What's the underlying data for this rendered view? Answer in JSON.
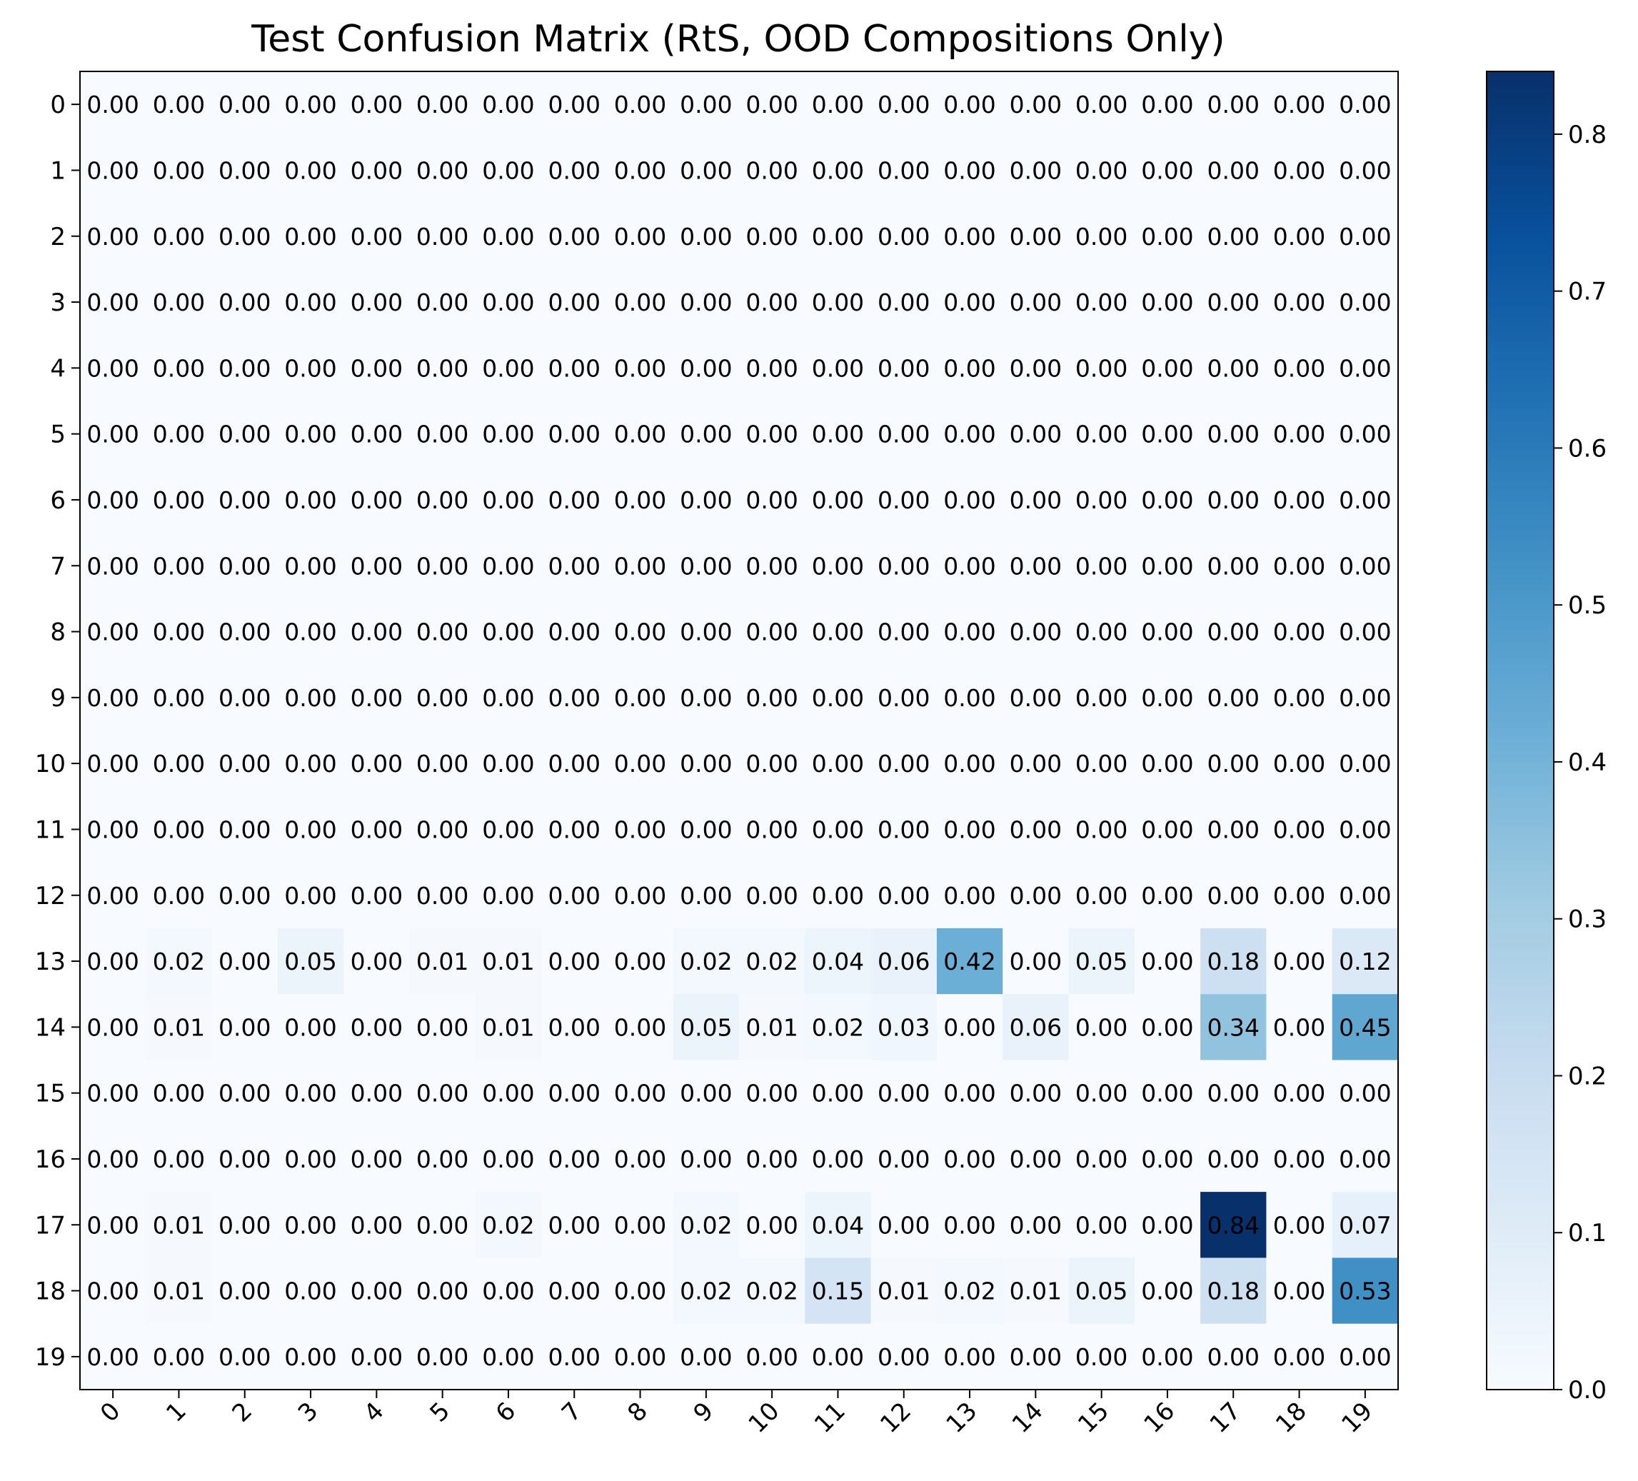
{
  "chart_data": {
    "type": "heatmap",
    "title": "Test Confusion Matrix (RtS, OOD Compositions Only)",
    "xlabel": "",
    "ylabel": "",
    "x_categories": [
      "0",
      "1",
      "2",
      "3",
      "4",
      "5",
      "6",
      "7",
      "8",
      "9",
      "10",
      "11",
      "12",
      "13",
      "14",
      "15",
      "16",
      "17",
      "18",
      "19"
    ],
    "y_categories": [
      "0",
      "1",
      "2",
      "3",
      "4",
      "5",
      "6",
      "7",
      "8",
      "9",
      "10",
      "11",
      "12",
      "13",
      "14",
      "15",
      "16",
      "17",
      "18",
      "19"
    ],
    "value_format": "0.00",
    "values": [
      [
        0,
        0,
        0,
        0,
        0,
        0,
        0,
        0,
        0,
        0,
        0,
        0,
        0,
        0,
        0,
        0,
        0,
        0,
        0,
        0
      ],
      [
        0,
        0,
        0,
        0,
        0,
        0,
        0,
        0,
        0,
        0,
        0,
        0,
        0,
        0,
        0,
        0,
        0,
        0,
        0,
        0
      ],
      [
        0,
        0,
        0,
        0,
        0,
        0,
        0,
        0,
        0,
        0,
        0,
        0,
        0,
        0,
        0,
        0,
        0,
        0,
        0,
        0
      ],
      [
        0,
        0,
        0,
        0,
        0,
        0,
        0,
        0,
        0,
        0,
        0,
        0,
        0,
        0,
        0,
        0,
        0,
        0,
        0,
        0
      ],
      [
        0,
        0,
        0,
        0,
        0,
        0,
        0,
        0,
        0,
        0,
        0,
        0,
        0,
        0,
        0,
        0,
        0,
        0,
        0,
        0
      ],
      [
        0,
        0,
        0,
        0,
        0,
        0,
        0,
        0,
        0,
        0,
        0,
        0,
        0,
        0,
        0,
        0,
        0,
        0,
        0,
        0
      ],
      [
        0,
        0,
        0,
        0,
        0,
        0,
        0,
        0,
        0,
        0,
        0,
        0,
        0,
        0,
        0,
        0,
        0,
        0,
        0,
        0
      ],
      [
        0,
        0,
        0,
        0,
        0,
        0,
        0,
        0,
        0,
        0,
        0,
        0,
        0,
        0,
        0,
        0,
        0,
        0,
        0,
        0
      ],
      [
        0,
        0,
        0,
        0,
        0,
        0,
        0,
        0,
        0,
        0,
        0,
        0,
        0,
        0,
        0,
        0,
        0,
        0,
        0,
        0
      ],
      [
        0,
        0,
        0,
        0,
        0,
        0,
        0,
        0,
        0,
        0,
        0,
        0,
        0,
        0,
        0,
        0,
        0,
        0,
        0,
        0
      ],
      [
        0,
        0,
        0,
        0,
        0,
        0,
        0,
        0,
        0,
        0,
        0,
        0,
        0,
        0,
        0,
        0,
        0,
        0,
        0,
        0
      ],
      [
        0,
        0,
        0,
        0,
        0,
        0,
        0,
        0,
        0,
        0,
        0,
        0,
        0,
        0,
        0,
        0,
        0,
        0,
        0,
        0
      ],
      [
        0,
        0,
        0,
        0,
        0,
        0,
        0,
        0,
        0,
        0,
        0,
        0,
        0,
        0,
        0,
        0,
        0,
        0,
        0,
        0
      ],
      [
        0,
        0.02,
        0,
        0.05,
        0,
        0.01,
        0.01,
        0,
        0,
        0.02,
        0.02,
        0.04,
        0.06,
        0.42,
        0,
        0.05,
        0,
        0.18,
        0,
        0.12
      ],
      [
        0,
        0.01,
        0,
        0,
        0,
        0,
        0.01,
        0,
        0,
        0.05,
        0.01,
        0.02,
        0.03,
        0,
        0.06,
        0,
        0,
        0.34,
        0,
        0.45
      ],
      [
        0,
        0,
        0,
        0,
        0,
        0,
        0,
        0,
        0,
        0,
        0,
        0,
        0,
        0,
        0,
        0,
        0,
        0,
        0,
        0
      ],
      [
        0,
        0,
        0,
        0,
        0,
        0,
        0,
        0,
        0,
        0,
        0,
        0,
        0,
        0,
        0,
        0,
        0,
        0,
        0,
        0
      ],
      [
        0,
        0.01,
        0,
        0,
        0,
        0,
        0.02,
        0,
        0,
        0.02,
        0,
        0.04,
        0,
        0,
        0,
        0,
        0,
        0.84,
        0,
        0.07
      ],
      [
        0,
        0.01,
        0,
        0,
        0,
        0,
        0,
        0,
        0,
        0.02,
        0.02,
        0.15,
        0.01,
        0.02,
        0.01,
        0.05,
        0,
        0.18,
        0,
        0.53
      ],
      [
        0,
        0,
        0,
        0,
        0,
        0,
        0,
        0,
        0,
        0,
        0,
        0,
        0,
        0,
        0,
        0,
        0,
        0,
        0,
        0
      ]
    ],
    "colormap": "Blues",
    "colorbar": {
      "range": [
        0,
        0.84
      ],
      "ticks": [
        0.0,
        0.1,
        0.2,
        0.3,
        0.4,
        0.5,
        0.6,
        0.7,
        0.8
      ],
      "tick_labels": [
        "0.0",
        "0.1",
        "0.2",
        "0.3",
        "0.4",
        "0.5",
        "0.6",
        "0.7",
        "0.8"
      ]
    },
    "grid": false,
    "legend": "none"
  }
}
